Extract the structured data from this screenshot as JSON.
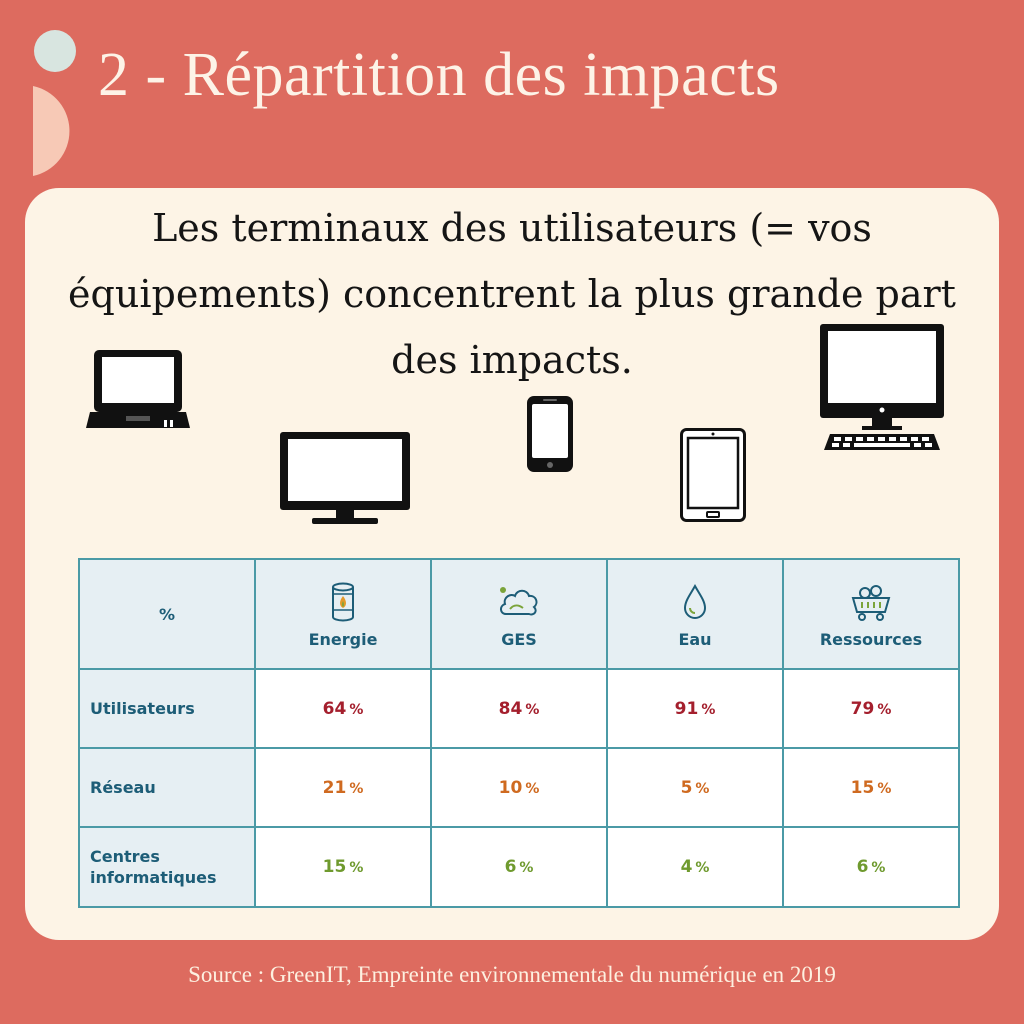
{
  "header": {
    "title": "2 - Répartition des impacts"
  },
  "card": {
    "headline": "Les terminaux des utilisateurs (= vos équipements) concentrent la plus grande part des impacts."
  },
  "devices": [
    "laptop-icon",
    "monitor-icon",
    "smartphone-icon",
    "tablet-icon",
    "desktop-computer-icon"
  ],
  "table": {
    "corner": "%",
    "columns": [
      {
        "label": "Energie",
        "icon": "fuel-barrel-icon"
      },
      {
        "label": "GES",
        "icon": "cloud-icon"
      },
      {
        "label": "Eau",
        "icon": "water-drop-icon"
      },
      {
        "label": "Ressources",
        "icon": "mining-cart-icon"
      }
    ],
    "rows": [
      {
        "label": "Utilisateurs",
        "values": [
          "64",
          "84",
          "91",
          "79"
        ]
      },
      {
        "label": "Réseau",
        "values": [
          "21",
          "10",
          "5",
          "15"
        ]
      },
      {
        "label": "Centres informatiques",
        "values": [
          "15",
          "6",
          "4",
          "6"
        ]
      }
    ],
    "unit": "%"
  },
  "footer": {
    "source": "Source : GreenIT, Empreinte environnementale du numérique en 2019"
  },
  "colors": {
    "background": "#dd6b5f",
    "card": "#fdf4e6",
    "table_border": "#4b9aa6",
    "header_text": "#1d5d77",
    "users": "#a41f2d",
    "network": "#cf6a20",
    "datacenters": "#6f9a2e"
  }
}
